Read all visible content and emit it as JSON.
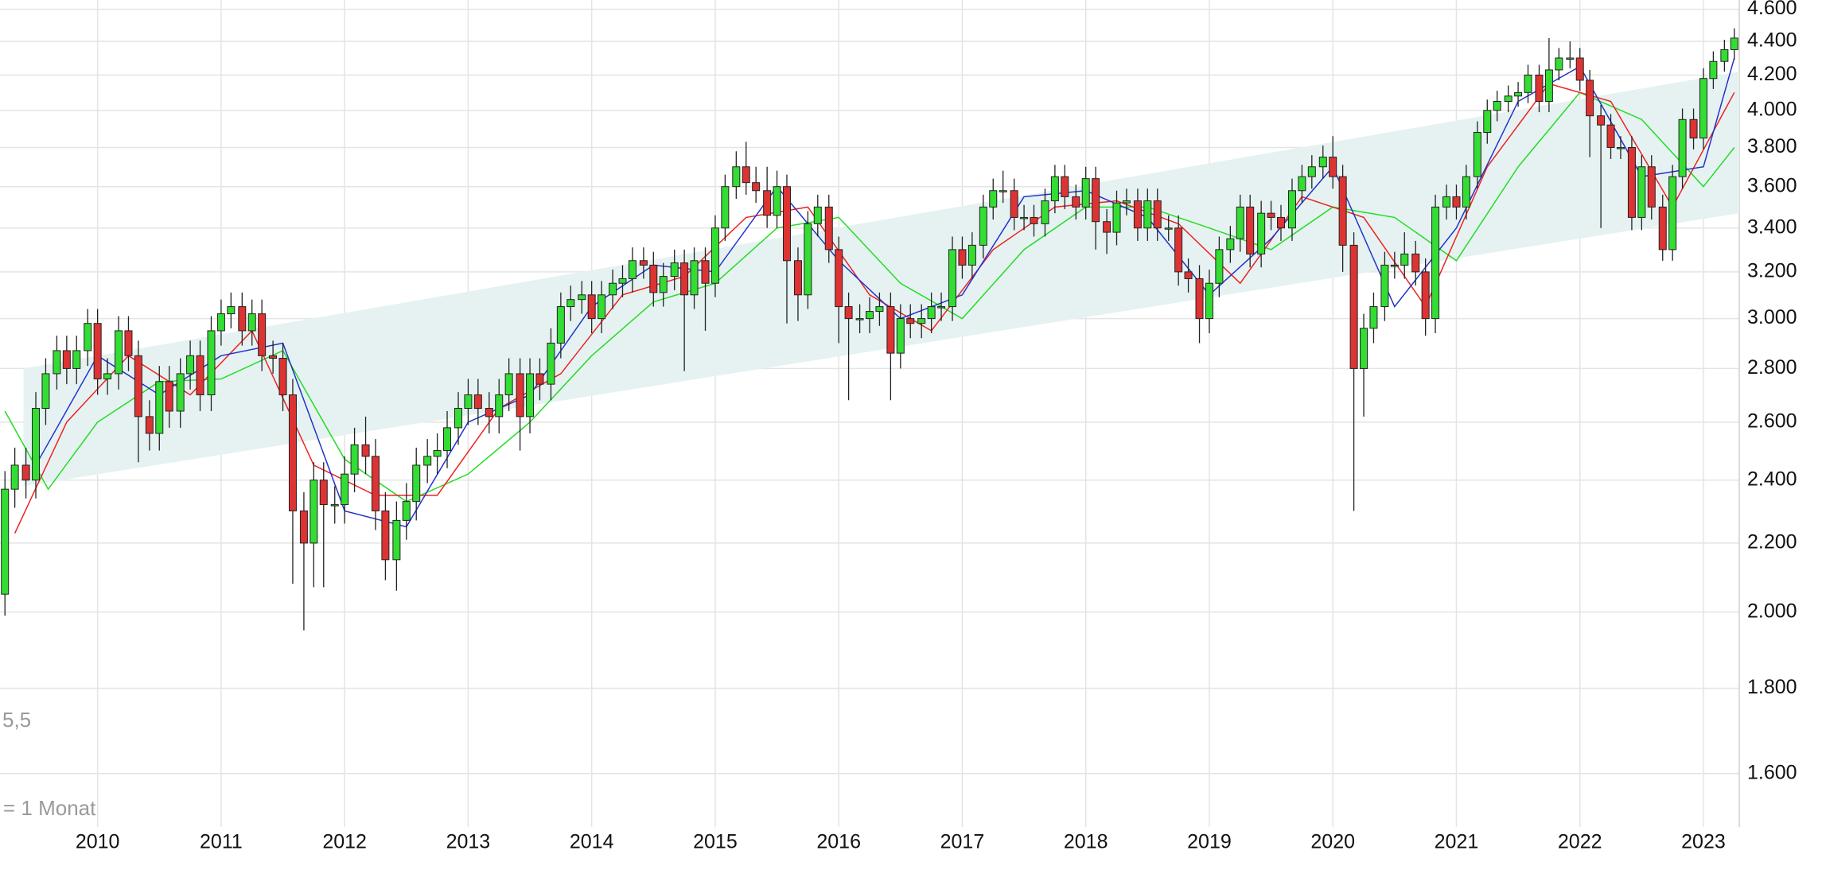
{
  "chart_data": {
    "type": "candlestick",
    "log_scale": true,
    "grid": true,
    "up_color": "#33dd33",
    "down_color": "#dd3333",
    "annotations": [
      "5,5",
      "= 1 Monat"
    ],
    "xlim": [
      2009.21,
      2023.29
    ],
    "xticks": [
      2010,
      2011,
      2012,
      2013,
      2014,
      2015,
      2016,
      2017,
      2018,
      2019,
      2020,
      2021,
      2022,
      2023
    ],
    "ylim": [
      1486,
      4659
    ],
    "yticks": [
      {
        "value": 1600,
        "label": "1.600"
      },
      {
        "value": 1800,
        "label": "1.800"
      },
      {
        "value": 2000,
        "label": "2.000"
      },
      {
        "value": 2200,
        "label": "2.200"
      },
      {
        "value": 2400,
        "label": "2.400"
      },
      {
        "value": 2600,
        "label": "2.600"
      },
      {
        "value": 2800,
        "label": "2.800"
      },
      {
        "value": 3000,
        "label": "3.000"
      },
      {
        "value": 3200,
        "label": "3.200"
      },
      {
        "value": 3400,
        "label": "3.400"
      },
      {
        "value": 3600,
        "label": "3.600"
      },
      {
        "value": 3800,
        "label": "3.800"
      },
      {
        "value": 4000,
        "label": "4.000"
      },
      {
        "value": 4200,
        "label": "4.200"
      },
      {
        "value": 4400,
        "label": "4.400"
      },
      {
        "value": 4600,
        "label": "4.600"
      }
    ],
    "band": {
      "color": "#e6f2f2",
      "x": [
        2009.4,
        2023.29
      ],
      "lower": [
        2380,
        3470
      ],
      "upper": [
        2800,
        4220
      ]
    },
    "lines": [
      {
        "color": "#22dd22",
        "x": [
          2009.25,
          2009.6,
          2010.0,
          2010.5,
          2011.0,
          2011.5,
          2012.0,
          2012.5,
          2013.0,
          2013.5,
          2014.0,
          2014.5,
          2015.0,
          2015.5,
          2016.0,
          2016.5,
          2017.0,
          2017.5,
          2018.0,
          2018.5,
          2019.0,
          2019.5,
          2020.0,
          2020.5,
          2021.0,
          2021.5,
          2022.0,
          2022.5,
          2023.0,
          2023.25
        ],
        "values": [
          2640,
          2370,
          2600,
          2750,
          2760,
          2870,
          2470,
          2330,
          2420,
          2600,
          2850,
          3070,
          3150,
          3400,
          3450,
          3150,
          3000,
          3300,
          3500,
          3500,
          3400,
          3300,
          3500,
          3450,
          3250,
          3700,
          4100,
          3950,
          3600,
          3800
        ]
      },
      {
        "color": "#ee2222",
        "x": [
          2009.33,
          2009.75,
          2010.25,
          2010.75,
          2011.25,
          2011.75,
          2012.25,
          2012.75,
          2013.25,
          2013.75,
          2014.25,
          2014.75,
          2015.25,
          2015.75,
          2016.25,
          2016.75,
          2017.25,
          2017.75,
          2018.25,
          2018.75,
          2019.25,
          2019.75,
          2020.25,
          2020.75,
          2021.25,
          2021.75,
          2022.25,
          2022.75,
          2023.25
        ],
        "values": [
          2230,
          2600,
          2850,
          2700,
          2950,
          2450,
          2350,
          2350,
          2650,
          2780,
          3100,
          3180,
          3450,
          3500,
          3100,
          2950,
          3300,
          3500,
          3530,
          3420,
          3150,
          3550,
          3450,
          3050,
          3700,
          4150,
          4050,
          3500,
          4100
        ]
      },
      {
        "color": "#2233cc",
        "x": [
          2009.5,
          2010.0,
          2010.5,
          2011.0,
          2011.5,
          2012.0,
          2012.5,
          2013.0,
          2013.5,
          2014.0,
          2014.5,
          2015.0,
          2015.5,
          2016.0,
          2016.5,
          2017.0,
          2017.5,
          2018.0,
          2018.5,
          2019.0,
          2019.5,
          2020.0,
          2020.5,
          2021.0,
          2021.5,
          2022.0,
          2022.5,
          2023.0,
          2023.25
        ],
        "values": [
          2450,
          2850,
          2700,
          2850,
          2900,
          2300,
          2250,
          2600,
          2700,
          3050,
          3230,
          3200,
          3600,
          3250,
          3000,
          3100,
          3550,
          3580,
          3450,
          3100,
          3350,
          3700,
          3050,
          3400,
          4050,
          4250,
          3650,
          3700,
          4300
        ]
      }
    ],
    "x": [
      2009.25,
      2009.33,
      2009.42,
      2009.5,
      2009.58,
      2009.67,
      2009.75,
      2009.83,
      2009.92,
      2010.0,
      2010.08,
      2010.17,
      2010.25,
      2010.33,
      2010.42,
      2010.5,
      2010.58,
      2010.67,
      2010.75,
      2010.83,
      2010.92,
      2011.0,
      2011.08,
      2011.17,
      2011.25,
      2011.33,
      2011.42,
      2011.5,
      2011.58,
      2011.67,
      2011.75,
      2011.83,
      2011.92,
      2012.0,
      2012.08,
      2012.17,
      2012.25,
      2012.33,
      2012.42,
      2012.5,
      2012.58,
      2012.67,
      2012.75,
      2012.83,
      2012.92,
      2013.0,
      2013.08,
      2013.17,
      2013.25,
      2013.33,
      2013.42,
      2013.5,
      2013.58,
      2013.67,
      2013.75,
      2013.83,
      2013.92,
      2014.0,
      2014.08,
      2014.17,
      2014.25,
      2014.33,
      2014.42,
      2014.5,
      2014.58,
      2014.67,
      2014.75,
      2014.83,
      2014.92,
      2015.0,
      2015.08,
      2015.17,
      2015.25,
      2015.33,
      2015.42,
      2015.5,
      2015.58,
      2015.67,
      2015.75,
      2015.83,
      2015.92,
      2016.0,
      2016.08,
      2016.17,
      2016.25,
      2016.33,
      2016.42,
      2016.5,
      2016.58,
      2016.67,
      2016.75,
      2016.83,
      2016.92,
      2017.0,
      2017.08,
      2017.17,
      2017.25,
      2017.33,
      2017.42,
      2017.5,
      2017.58,
      2017.67,
      2017.75,
      2017.83,
      2017.92,
      2018.0,
      2018.08,
      2018.17,
      2018.25,
      2018.33,
      2018.42,
      2018.5,
      2018.58,
      2018.67,
      2018.75,
      2018.83,
      2018.92,
      2019.0,
      2019.08,
      2019.17,
      2019.25,
      2019.33,
      2019.42,
      2019.5,
      2019.58,
      2019.67,
      2019.75,
      2019.83,
      2019.92,
      2020.0,
      2020.08,
      2020.17,
      2020.25,
      2020.33,
      2020.42,
      2020.5,
      2020.58,
      2020.67,
      2020.75,
      2020.83,
      2020.92,
      2021.0,
      2021.08,
      2021.17,
      2021.25,
      2021.33,
      2021.42,
      2021.5,
      2021.58,
      2021.67,
      2021.75,
      2021.83,
      2021.92,
      2022.0,
      2022.08,
      2022.17,
      2022.25,
      2022.33,
      2022.42,
      2022.5,
      2022.58,
      2022.67,
      2022.75,
      2022.83,
      2022.92,
      2023.0,
      2023.08,
      2023.17,
      2023.25
    ],
    "open": [
      2050,
      2370,
      2450,
      2400,
      2650,
      2780,
      2870,
      2800,
      2870,
      2980,
      2760,
      2780,
      2950,
      2850,
      2620,
      2560,
      2750,
      2640,
      2780,
      2850,
      2700,
      2950,
      3020,
      3050,
      2950,
      3020,
      2850,
      2840,
      2700,
      2300,
      2200,
      2400,
      2320,
      2320,
      2420,
      2520,
      2480,
      2300,
      2150,
      2270,
      2330,
      2450,
      2480,
      2500,
      2580,
      2650,
      2700,
      2650,
      2620,
      2700,
      2780,
      2620,
      2780,
      2740,
      2900,
      3050,
      3080,
      3100,
      3000,
      3100,
      3150,
      3170,
      3250,
      3230,
      3110,
      3180,
      3240,
      3100,
      3250,
      3150,
      3400,
      3600,
      3700,
      3620,
      3580,
      3460,
      3600,
      3250,
      3100,
      3420,
      3500,
      3300,
      3050,
      3000,
      3000,
      3030,
      3050,
      2860,
      3000,
      2980,
      3000,
      3050,
      3050,
      3300,
      3230,
      3320,
      3500,
      3580,
      3580,
      3450,
      3450,
      3420,
      3530,
      3650,
      3550,
      3500,
      3640,
      3430,
      3380,
      3520,
      3530,
      3400,
      3530,
      3400,
      3400,
      3200,
      3170,
      3000,
      3150,
      3300,
      3350,
      3500,
      3280,
      3470,
      3450,
      3400,
      3580,
      3650,
      3700,
      3750,
      3650,
      3320,
      2800,
      2960,
      3050,
      3230,
      3230,
      3280,
      3200,
      3000,
      3500,
      3550,
      3500,
      3650,
      3880,
      4000,
      4050,
      4080,
      4100,
      4200,
      4050,
      4230,
      4300,
      4300,
      4170,
      3970,
      3920,
      3800,
      3800,
      3450,
      3700,
      3500,
      3300,
      3650,
      3950,
      3850,
      4180,
      4280,
      4350
    ],
    "high": [
      2430,
      2510,
      2510,
      2710,
      2840,
      2930,
      2930,
      2930,
      3040,
      3040,
      2840,
      3010,
      3010,
      2910,
      2680,
      2810,
      2810,
      2840,
      2910,
      2910,
      3010,
      3080,
      3110,
      3110,
      3080,
      3080,
      2910,
      2900,
      2760,
      2360,
      2460,
      2460,
      2380,
      2480,
      2580,
      2620,
      2540,
      2360,
      2330,
      2390,
      2510,
      2540,
      2560,
      2640,
      2710,
      2760,
      2760,
      2710,
      2760,
      2840,
      2840,
      2840,
      2840,
      2960,
      3110,
      3140,
      3160,
      3160,
      3160,
      3210,
      3230,
      3310,
      3310,
      3290,
      3240,
      3300,
      3300,
      3310,
      3310,
      3460,
      3660,
      3780,
      3830,
      3700,
      3700,
      3680,
      3660,
      3310,
      3480,
      3560,
      3560,
      3360,
      3110,
      3060,
      3090,
      3110,
      3110,
      3060,
      3060,
      3060,
      3110,
      3110,
      3360,
      3360,
      3380,
      3560,
      3640,
      3680,
      3640,
      3510,
      3510,
      3590,
      3710,
      3710,
      3610,
      3700,
      3700,
      3490,
      3580,
      3590,
      3590,
      3590,
      3590,
      3460,
      3460,
      3260,
      3230,
      3210,
      3360,
      3410,
      3560,
      3560,
      3530,
      3530,
      3510,
      3640,
      3710,
      3760,
      3810,
      3860,
      3710,
      3380,
      3020,
      3110,
      3290,
      3290,
      3380,
      3340,
      3260,
      3560,
      3610,
      3610,
      3710,
      3940,
      4060,
      4110,
      4140,
      4160,
      4260,
      4260,
      4420,
      4360,
      4400,
      4360,
      4230,
      4030,
      3980,
      3860,
      3860,
      3760,
      3760,
      3560,
      3710,
      4010,
      4010,
      4240,
      4340,
      4410,
      4480
    ],
    "low": [
      1990,
      2310,
      2340,
      2340,
      2590,
      2720,
      2740,
      2740,
      2810,
      2700,
      2700,
      2720,
      2790,
      2460,
      2500,
      2500,
      2580,
      2580,
      2720,
      2640,
      2640,
      2890,
      2960,
      2890,
      2890,
      2790,
      2780,
      2640,
      2080,
      1950,
      2070,
      2070,
      2260,
      2260,
      2360,
      2420,
      2240,
      2090,
      2060,
      2210,
      2270,
      2390,
      2420,
      2440,
      2520,
      2590,
      2590,
      2560,
      2560,
      2640,
      2500,
      2560,
      2680,
      2680,
      2840,
      2990,
      3020,
      2940,
      2940,
      3040,
      3090,
      3110,
      3170,
      3050,
      3050,
      3120,
      2790,
      3040,
      2950,
      3090,
      3340,
      3540,
      3560,
      3520,
      3400,
      3400,
      2980,
      2990,
      3040,
      3360,
      3240,
      2900,
      2680,
      2940,
      2940,
      2970,
      2680,
      2800,
      2920,
      2920,
      2940,
      2990,
      2990,
      3170,
      3170,
      3260,
      3440,
      3520,
      3390,
      3390,
      3360,
      3360,
      3470,
      3490,
      3440,
      3440,
      3300,
      3280,
      3320,
      3460,
      3340,
      3340,
      3340,
      3340,
      3140,
      3110,
      2900,
      2940,
      3090,
      3240,
      3290,
      3220,
      3220,
      3390,
      3340,
      3340,
      3520,
      3590,
      3640,
      3590,
      3200,
      2300,
      2620,
      2900,
      2990,
      3170,
      3170,
      3140,
      2930,
      2940,
      3440,
      3440,
      3440,
      3590,
      3820,
      3940,
      3990,
      4020,
      4040,
      3990,
      3990,
      4170,
      4240,
      4110,
      3750,
      3400,
      3740,
      3740,
      3390,
      3390,
      3440,
      3250,
      3250,
      3590,
      3790,
      3790,
      4120,
      4220,
      4290
    ],
    "close": [
      2370,
      2450,
      2400,
      2650,
      2780,
      2870,
      2800,
      2870,
      2980,
      2760,
      2780,
      2950,
      2850,
      2620,
      2560,
      2750,
      2640,
      2780,
      2850,
      2700,
      2950,
      3020,
      3050,
      2950,
      3020,
      2850,
      2840,
      2700,
      2300,
      2200,
      2400,
      2320,
      2320,
      2420,
      2520,
      2480,
      2300,
      2150,
      2270,
      2330,
      2450,
      2480,
      2500,
      2580,
      2650,
      2700,
      2650,
      2620,
      2700,
      2780,
      2620,
      2780,
      2740,
      2900,
      3050,
      3080,
      3100,
      3000,
      3100,
      3150,
      3170,
      3250,
      3230,
      3110,
      3180,
      3240,
      3100,
      3250,
      3150,
      3400,
      3600,
      3700,
      3620,
      3580,
      3460,
      3600,
      3250,
      3100,
      3420,
      3500,
      3300,
      3050,
      3000,
      3000,
      3030,
      3050,
      2860,
      3000,
      2980,
      3000,
      3050,
      3050,
      3300,
      3230,
      3320,
      3500,
      3580,
      3580,
      3450,
      3450,
      3420,
      3530,
      3650,
      3550,
      3500,
      3640,
      3430,
      3380,
      3520,
      3530,
      3400,
      3530,
      3400,
      3400,
      3200,
      3170,
      3000,
      3150,
      3300,
      3350,
      3500,
      3280,
      3470,
      3450,
      3400,
      3580,
      3650,
      3700,
      3750,
      3650,
      3320,
      2800,
      2960,
      3050,
      3230,
      3230,
      3280,
      3200,
      3000,
      3500,
      3550,
      3500,
      3650,
      3880,
      4000,
      4050,
      4080,
      4100,
      4200,
      4050,
      4230,
      4300,
      4300,
      4170,
      3970,
      3920,
      3800,
      3800,
      3450,
      3700,
      3500,
      3300,
      3650,
      3950,
      3850,
      4180,
      4280,
      4350,
      4420
    ]
  }
}
